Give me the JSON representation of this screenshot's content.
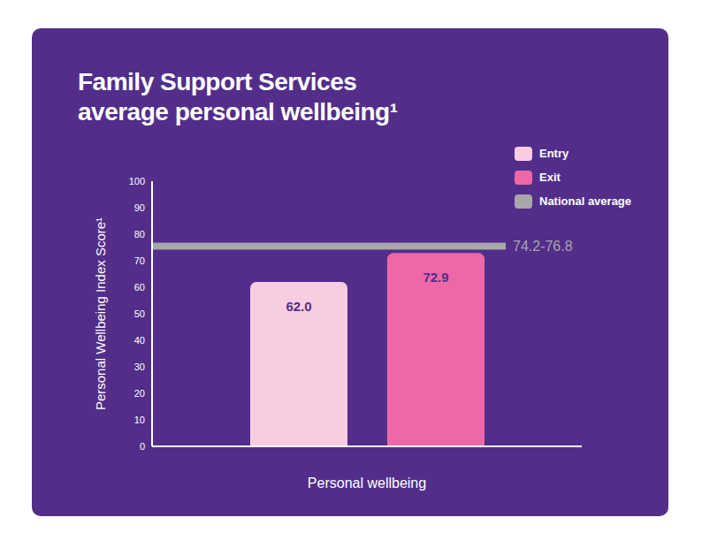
{
  "chart_data": {
    "type": "bar",
    "title": [
      "Family Support Services",
      "average personal wellbeing¹"
    ],
    "y_label": "Personal Wellbeing Index Score¹",
    "categories": [
      "Personal wellbeing"
    ],
    "series": [
      {
        "name": "Entry",
        "color": "#f8cde2",
        "values": [
          62.0
        ],
        "value_labels": [
          "62.0"
        ]
      },
      {
        "name": "Exit",
        "color": "#ee68a7",
        "values": [
          72.9
        ],
        "value_labels": [
          "72.9"
        ]
      }
    ],
    "reference_band": {
      "name": "National average",
      "label": "74.2-76.8",
      "low": 74.2,
      "high": 76.8,
      "color": "#a7a7a9"
    },
    "ylim": [
      0,
      100
    ],
    "yticks": [
      0,
      10,
      20,
      30,
      40,
      50,
      60,
      70,
      80,
      90,
      100
    ],
    "grid": false,
    "legend": "top-right",
    "data_labels": true
  }
}
